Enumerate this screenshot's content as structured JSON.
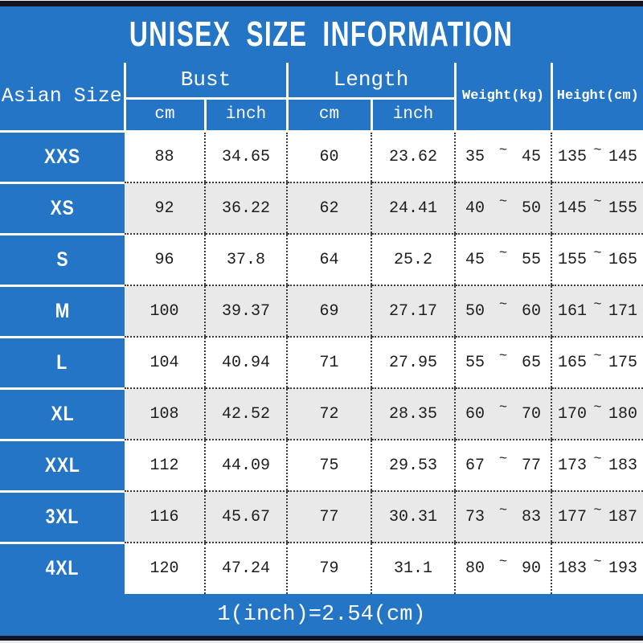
{
  "title": "UNISEX SIZE INFORMATION",
  "footer_note": "1(inch)=2.54(cm)",
  "range_separator": "~",
  "colors": {
    "primary_blue": "#2575c7",
    "row_alt_gray": "#e9e9e9",
    "top_bottom_bar": "#141422",
    "text_dark": "#1e1e1e",
    "text_light": "#ffffff"
  },
  "table": {
    "corner_header": "Asian Size",
    "group_headers": [
      {
        "label": "Bust",
        "subs": [
          "cm",
          "inch"
        ]
      },
      {
        "label": "Length",
        "subs": [
          "cm",
          "inch"
        ]
      }
    ],
    "tall_headers": [
      "Weight(kg)",
      "Height(cm)"
    ],
    "rows": [
      {
        "size": "XXS",
        "bust_cm": "88",
        "bust_in": "34.65",
        "len_cm": "60",
        "len_in": "23.62",
        "wt": [
          "35",
          "45"
        ],
        "ht": [
          "135",
          "145"
        ]
      },
      {
        "size": "XS",
        "bust_cm": "92",
        "bust_in": "36.22",
        "len_cm": "62",
        "len_in": "24.41",
        "wt": [
          "40",
          "50"
        ],
        "ht": [
          "145",
          "155"
        ]
      },
      {
        "size": "S",
        "bust_cm": "96",
        "bust_in": "37.8",
        "len_cm": "64",
        "len_in": "25.2",
        "wt": [
          "45",
          "55"
        ],
        "ht": [
          "155",
          "165"
        ]
      },
      {
        "size": "M",
        "bust_cm": "100",
        "bust_in": "39.37",
        "len_cm": "69",
        "len_in": "27.17",
        "wt": [
          "50",
          "60"
        ],
        "ht": [
          "161",
          "171"
        ]
      },
      {
        "size": "L",
        "bust_cm": "104",
        "bust_in": "40.94",
        "len_cm": "71",
        "len_in": "27.95",
        "wt": [
          "55",
          "65"
        ],
        "ht": [
          "165",
          "175"
        ]
      },
      {
        "size": "XL",
        "bust_cm": "108",
        "bust_in": "42.52",
        "len_cm": "72",
        "len_in": "28.35",
        "wt": [
          "60",
          "70"
        ],
        "ht": [
          "170",
          "180"
        ]
      },
      {
        "size": "XXL",
        "bust_cm": "112",
        "bust_in": "44.09",
        "len_cm": "75",
        "len_in": "29.53",
        "wt": [
          "67",
          "77"
        ],
        "ht": [
          "173",
          "183"
        ]
      },
      {
        "size": "3XL",
        "bust_cm": "116",
        "bust_in": "45.67",
        "len_cm": "77",
        "len_in": "30.31",
        "wt": [
          "73",
          "83"
        ],
        "ht": [
          "177",
          "187"
        ]
      },
      {
        "size": "4XL",
        "bust_cm": "120",
        "bust_in": "47.24",
        "len_cm": "79",
        "len_in": "31.1",
        "wt": [
          "80",
          "90"
        ],
        "ht": [
          "183",
          "193"
        ]
      }
    ]
  }
}
